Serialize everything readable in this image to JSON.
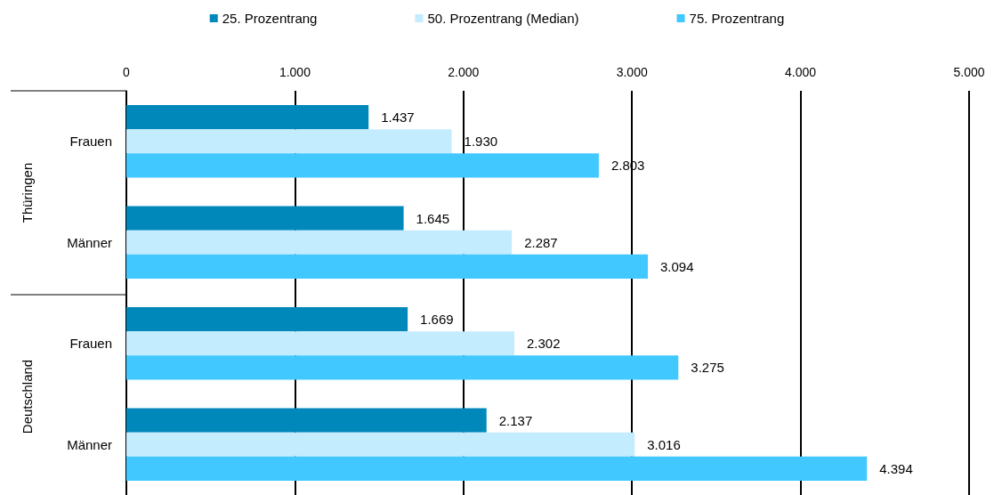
{
  "chart_data": {
    "type": "bar",
    "orientation": "horizontal",
    "categories": [
      "Frauen",
      "Männer",
      "Frauen",
      "Männer"
    ],
    "series": [
      {
        "name": "25. Prozentrang",
        "color": "#0088bb",
        "values": [
          1437,
          1645,
          1669,
          2137
        ],
        "value_labels": [
          "1.437",
          "1.645",
          "1.669",
          "2.137"
        ]
      },
      {
        "name": "50. Prozentrang (Median)",
        "color": "#c4ecff",
        "values": [
          1930,
          2287,
          2302,
          3016
        ],
        "value_labels": [
          "1.930",
          "2.287",
          "2.302",
          "3.016"
        ]
      },
      {
        "name": "75. Prozentrang",
        "color": "#40c8ff",
        "values": [
          2803,
          3094,
          3275,
          4394
        ],
        "value_labels": [
          "2.803",
          "3.094",
          "3.275",
          "4.394"
        ]
      }
    ],
    "xlim": [
      0,
      5000
    ],
    "xticks": [
      0,
      {
        "value": 1000,
        "label": "1.000"
      },
      {
        "value": 2000,
        "label": "2.000"
      },
      {
        "value": 3000,
        "label": "3.000"
      },
      {
        "value": 4000,
        "label": "4.000"
      },
      {
        "value": 5000,
        "label": "5.000"
      }
    ],
    "annotations": [
      "Thüringen",
      "Deutschland"
    ],
    "grid": "x",
    "legend": "top"
  }
}
